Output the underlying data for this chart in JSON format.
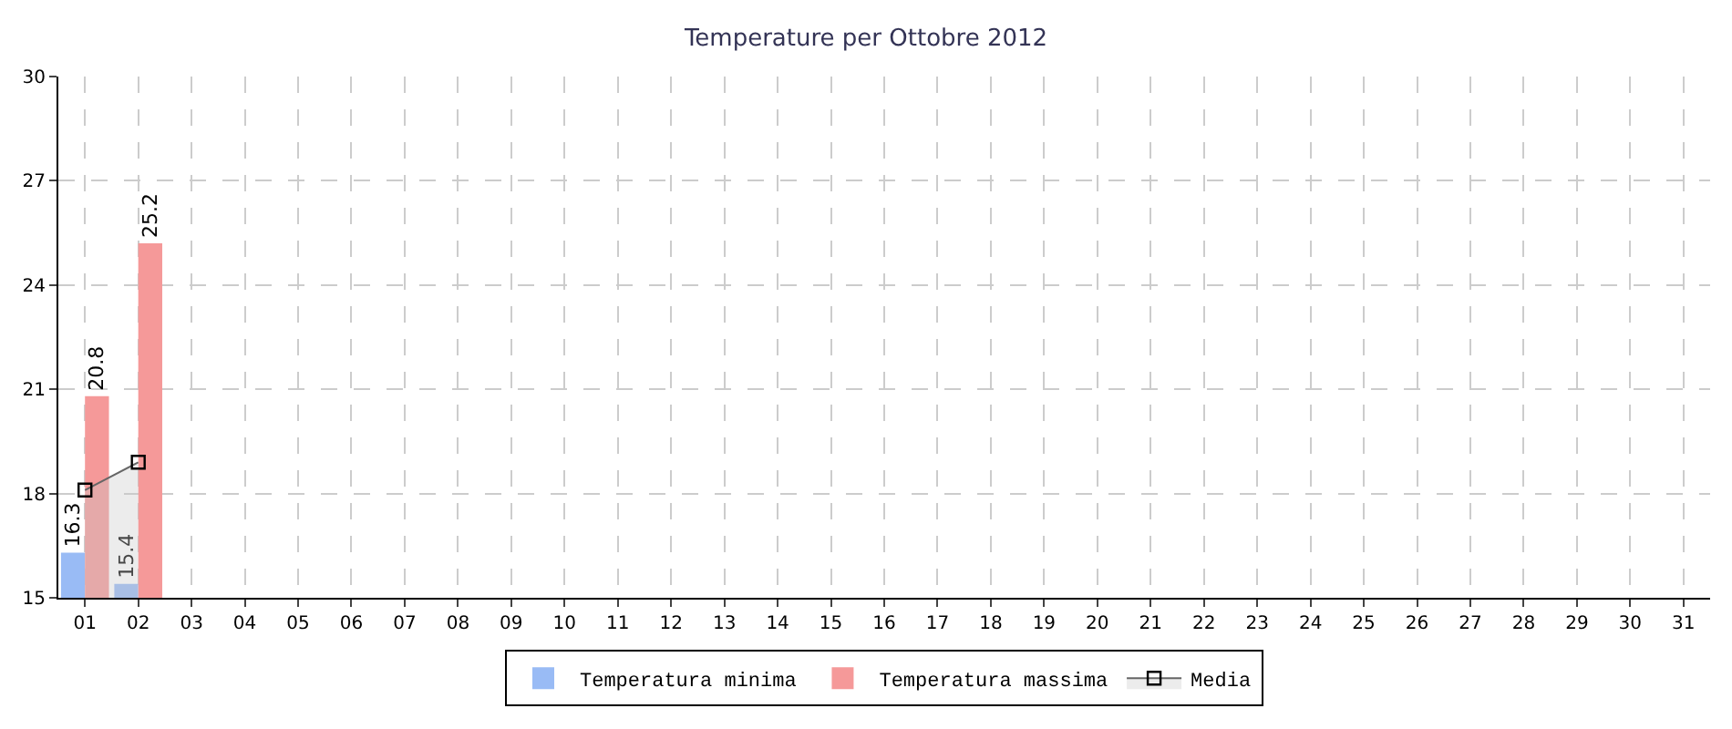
{
  "chart_data": {
    "type": "bar",
    "title": "Temperature per Ottobre 2012",
    "categories": [
      "01",
      "02",
      "03",
      "04",
      "05",
      "06",
      "07",
      "08",
      "09",
      "10",
      "11",
      "12",
      "13",
      "14",
      "15",
      "16",
      "17",
      "18",
      "19",
      "20",
      "21",
      "22",
      "23",
      "24",
      "25",
      "26",
      "27",
      "28",
      "29",
      "30",
      "31"
    ],
    "series": [
      {
        "name": "Temperatura minima",
        "color": "#99bbf5",
        "value_labels": [
          "16.3",
          "15.4",
          null,
          null,
          null,
          null,
          null,
          null,
          null,
          null,
          null,
          null,
          null,
          null,
          null,
          null,
          null,
          null,
          null,
          null,
          null,
          null,
          null,
          null,
          null,
          null,
          null,
          null,
          null,
          null,
          null
        ],
        "values": [
          16.3,
          15.4,
          null,
          null,
          null,
          null,
          null,
          null,
          null,
          null,
          null,
          null,
          null,
          null,
          null,
          null,
          null,
          null,
          null,
          null,
          null,
          null,
          null,
          null,
          null,
          null,
          null,
          null,
          null,
          null,
          null
        ]
      },
      {
        "name": "Temperatura massima",
        "color": "#f59999",
        "value_labels": [
          "20.8",
          "25.2",
          null,
          null,
          null,
          null,
          null,
          null,
          null,
          null,
          null,
          null,
          null,
          null,
          null,
          null,
          null,
          null,
          null,
          null,
          null,
          null,
          null,
          null,
          null,
          null,
          null,
          null,
          null,
          null,
          null
        ],
        "values": [
          20.8,
          25.2,
          null,
          null,
          null,
          null,
          null,
          null,
          null,
          null,
          null,
          null,
          null,
          null,
          null,
          null,
          null,
          null,
          null,
          null,
          null,
          null,
          null,
          null,
          null,
          null,
          null,
          null,
          null,
          null,
          null
        ]
      },
      {
        "name": "Media",
        "type": "area",
        "color": "#666666",
        "marker": "square",
        "values": [
          18.1,
          18.9,
          null,
          null,
          null,
          null,
          null,
          null,
          null,
          null,
          null,
          null,
          null,
          null,
          null,
          null,
          null,
          null,
          null,
          null,
          null,
          null,
          null,
          null,
          null,
          null,
          null,
          null,
          null,
          null,
          null
        ]
      }
    ],
    "ylim": [
      15,
      30
    ],
    "yticks": [
      15,
      18,
      21,
      24,
      27,
      30
    ],
    "grid": true,
    "legend": "bottom"
  }
}
